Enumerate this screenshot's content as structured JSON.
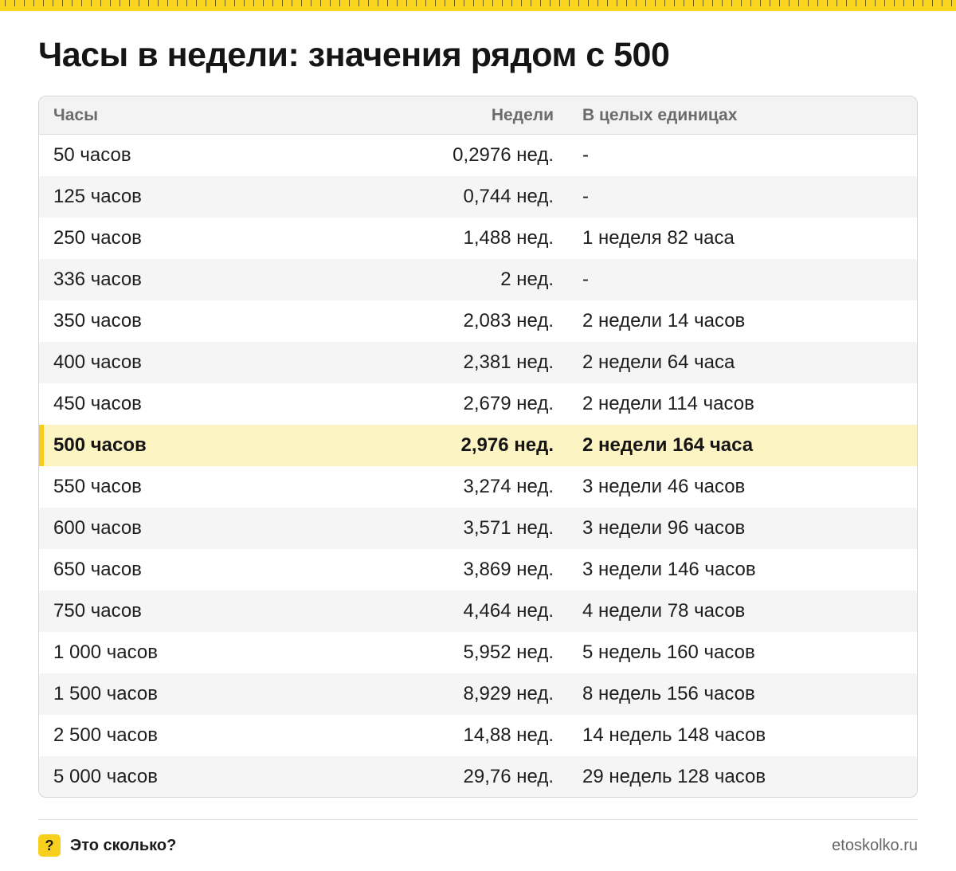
{
  "title": "Часы в недели: значения рядом с 500",
  "table": {
    "headers": [
      "Часы",
      "Недели",
      "В целых единицах"
    ],
    "rows": [
      {
        "hours": "50 часов",
        "weeks": "0,2976 нед.",
        "whole": "-"
      },
      {
        "hours": "125 часов",
        "weeks": "0,744 нед.",
        "whole": "-"
      },
      {
        "hours": "250 часов",
        "weeks": "1,488 нед.",
        "whole": "1 неделя 82 часа"
      },
      {
        "hours": "336 часов",
        "weeks": "2 нед.",
        "whole": "-"
      },
      {
        "hours": "350 часов",
        "weeks": "2,083 нед.",
        "whole": "2 недели 14 часов"
      },
      {
        "hours": "400 часов",
        "weeks": "2,381 нед.",
        "whole": "2 недели 64 часа"
      },
      {
        "hours": "450 часов",
        "weeks": "2,679 нед.",
        "whole": "2 недели 114 часов"
      },
      {
        "hours": "500 часов",
        "weeks": "2,976 нед.",
        "whole": "2 недели 164 часа",
        "highlight": true
      },
      {
        "hours": "550 часов",
        "weeks": "3,274 нед.",
        "whole": "3 недели 46 часов"
      },
      {
        "hours": "600 часов",
        "weeks": "3,571 нед.",
        "whole": "3 недели 96 часов"
      },
      {
        "hours": "650 часов",
        "weeks": "3,869 нед.",
        "whole": "3 недели 146 часов"
      },
      {
        "hours": "750 часов",
        "weeks": "4,464 нед.",
        "whole": "4 недели 78 часов"
      },
      {
        "hours": "1 000 часов",
        "weeks": "5,952 нед.",
        "whole": "5 недель 160 часов"
      },
      {
        "hours": "1 500 часов",
        "weeks": "8,929 нед.",
        "whole": "8 недель 156 часов"
      },
      {
        "hours": "2 500 часов",
        "weeks": "14,88 нед.",
        "whole": "14 недель 148 часов"
      },
      {
        "hours": "5 000 часов",
        "weeks": "29,76 нед.",
        "whole": "29 недель 128 часов"
      }
    ]
  },
  "footer": {
    "icon_glyph": "?",
    "brand": "Это сколько?",
    "site": "etoskolko.ru"
  },
  "colors": {
    "accent_yellow": "#f7cf1d",
    "highlight_row": "#fdf4c4"
  }
}
